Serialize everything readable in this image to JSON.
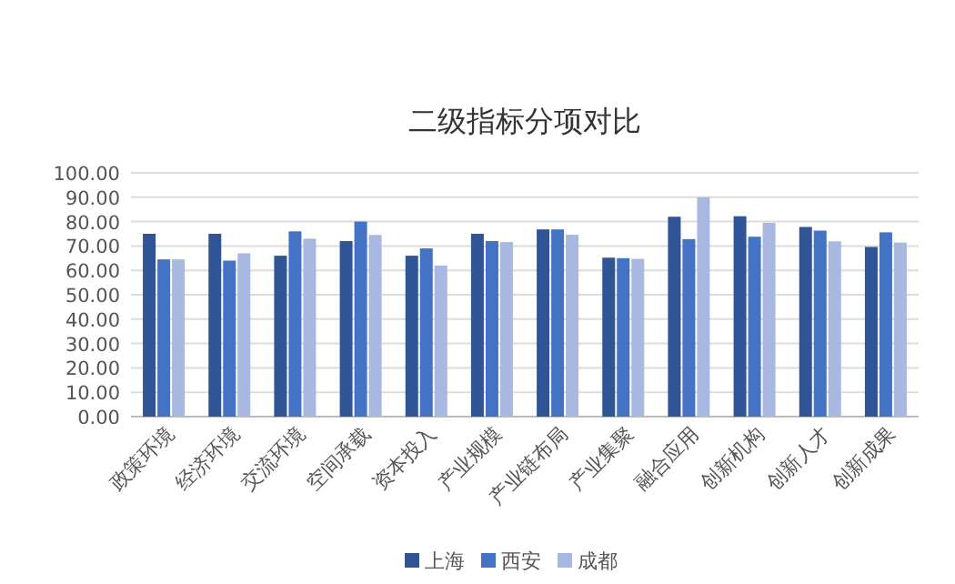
{
  "chart_data": {
    "type": "bar",
    "title": "二级指标分项对比",
    "categories": [
      "政策环境",
      "经济环境",
      "交流环境",
      "空间承载",
      "资本投入",
      "产业规模",
      "产业链布局",
      "产业集聚",
      "融合应用",
      "创新机构",
      "创新人才",
      "创新成果"
    ],
    "series": [
      {
        "name": "上海",
        "color": "#2f5597",
        "values": [
          75,
          75,
          66,
          72,
          66,
          75,
          76.8,
          65.2,
          82,
          82.2,
          77.8,
          69.6
        ]
      },
      {
        "name": "西安",
        "color": "#4472c4",
        "values": [
          64.5,
          64,
          76,
          80,
          69,
          72,
          76.8,
          65,
          72.8,
          73.8,
          76.3,
          75.6
        ]
      },
      {
        "name": "成都",
        "color": "#a9b8e0",
        "values": [
          64.5,
          67,
          73,
          74.5,
          62,
          71.6,
          74.6,
          64.7,
          90,
          79.5,
          71.9,
          71.4
        ]
      }
    ],
    "ylim": [
      0,
      100
    ],
    "yticks": [
      {
        "value": 0,
        "label": "0.00"
      },
      {
        "value": 10,
        "label": "10.00"
      },
      {
        "value": 20,
        "label": "20.00"
      },
      {
        "value": 30,
        "label": "30.00"
      },
      {
        "value": 40,
        "label": "40.00"
      },
      {
        "value": 50,
        "label": "50.00"
      },
      {
        "value": 60,
        "label": "60.00"
      },
      {
        "value": 70,
        "label": "70.00"
      },
      {
        "value": 80,
        "label": "80.00"
      },
      {
        "value": 90,
        "label": "90.00"
      },
      {
        "value": 100,
        "label": "100.00"
      }
    ],
    "grid": "y",
    "legend": "bottom"
  }
}
